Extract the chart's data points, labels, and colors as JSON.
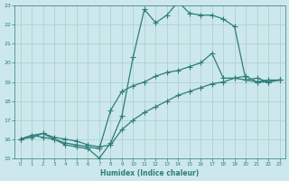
{
  "xlabel": "Humidex (Indice chaleur)",
  "bg_color": "#cce8ec",
  "grid_color": "#aacccc",
  "line_color": "#2e7d7a",
  "xlim": [
    -0.5,
    23.5
  ],
  "ylim": [
    15,
    23
  ],
  "xticks": [
    0,
    1,
    2,
    3,
    4,
    5,
    6,
    7,
    8,
    9,
    10,
    11,
    12,
    13,
    14,
    15,
    16,
    17,
    18,
    19,
    20,
    21,
    22,
    23
  ],
  "yticks": [
    15,
    16,
    17,
    18,
    19,
    20,
    21,
    22,
    23
  ],
  "line1_x": [
    0,
    1,
    2,
    3,
    4,
    5,
    6,
    7,
    8,
    9,
    10,
    11,
    12,
    13,
    14,
    15,
    16,
    17,
    18,
    19,
    20,
    21,
    22,
    23
  ],
  "line1_y": [
    16.0,
    16.2,
    16.1,
    16.0,
    15.7,
    15.6,
    15.5,
    15.0,
    15.8,
    17.2,
    20.3,
    22.8,
    22.1,
    22.5,
    23.2,
    22.6,
    22.5,
    22.5,
    22.3,
    21.9,
    19.1,
    19.2,
    19.0,
    19.1
  ],
  "line2_x": [
    0,
    1,
    2,
    3,
    4,
    5,
    6,
    7,
    8,
    9,
    10,
    11,
    12,
    13,
    14,
    15,
    16,
    17,
    18,
    19,
    20,
    21,
    22,
    23
  ],
  "line2_y": [
    16.0,
    16.2,
    16.3,
    16.0,
    15.8,
    15.7,
    15.6,
    15.5,
    17.5,
    18.5,
    18.8,
    19.0,
    19.3,
    19.5,
    19.6,
    19.8,
    20.0,
    20.5,
    19.2,
    19.2,
    19.1,
    19.0,
    19.1,
    19.1
  ],
  "line3_x": [
    0,
    1,
    2,
    3,
    4,
    5,
    6,
    7,
    8,
    9,
    10,
    11,
    12,
    13,
    14,
    15,
    16,
    17,
    18,
    19,
    20,
    21,
    22,
    23
  ],
  "line3_y": [
    16.0,
    16.1,
    16.3,
    16.1,
    16.0,
    15.9,
    15.7,
    15.6,
    15.7,
    16.5,
    17.0,
    17.4,
    17.7,
    18.0,
    18.3,
    18.5,
    18.7,
    18.9,
    19.0,
    19.2,
    19.3,
    19.0,
    19.0,
    19.1
  ]
}
